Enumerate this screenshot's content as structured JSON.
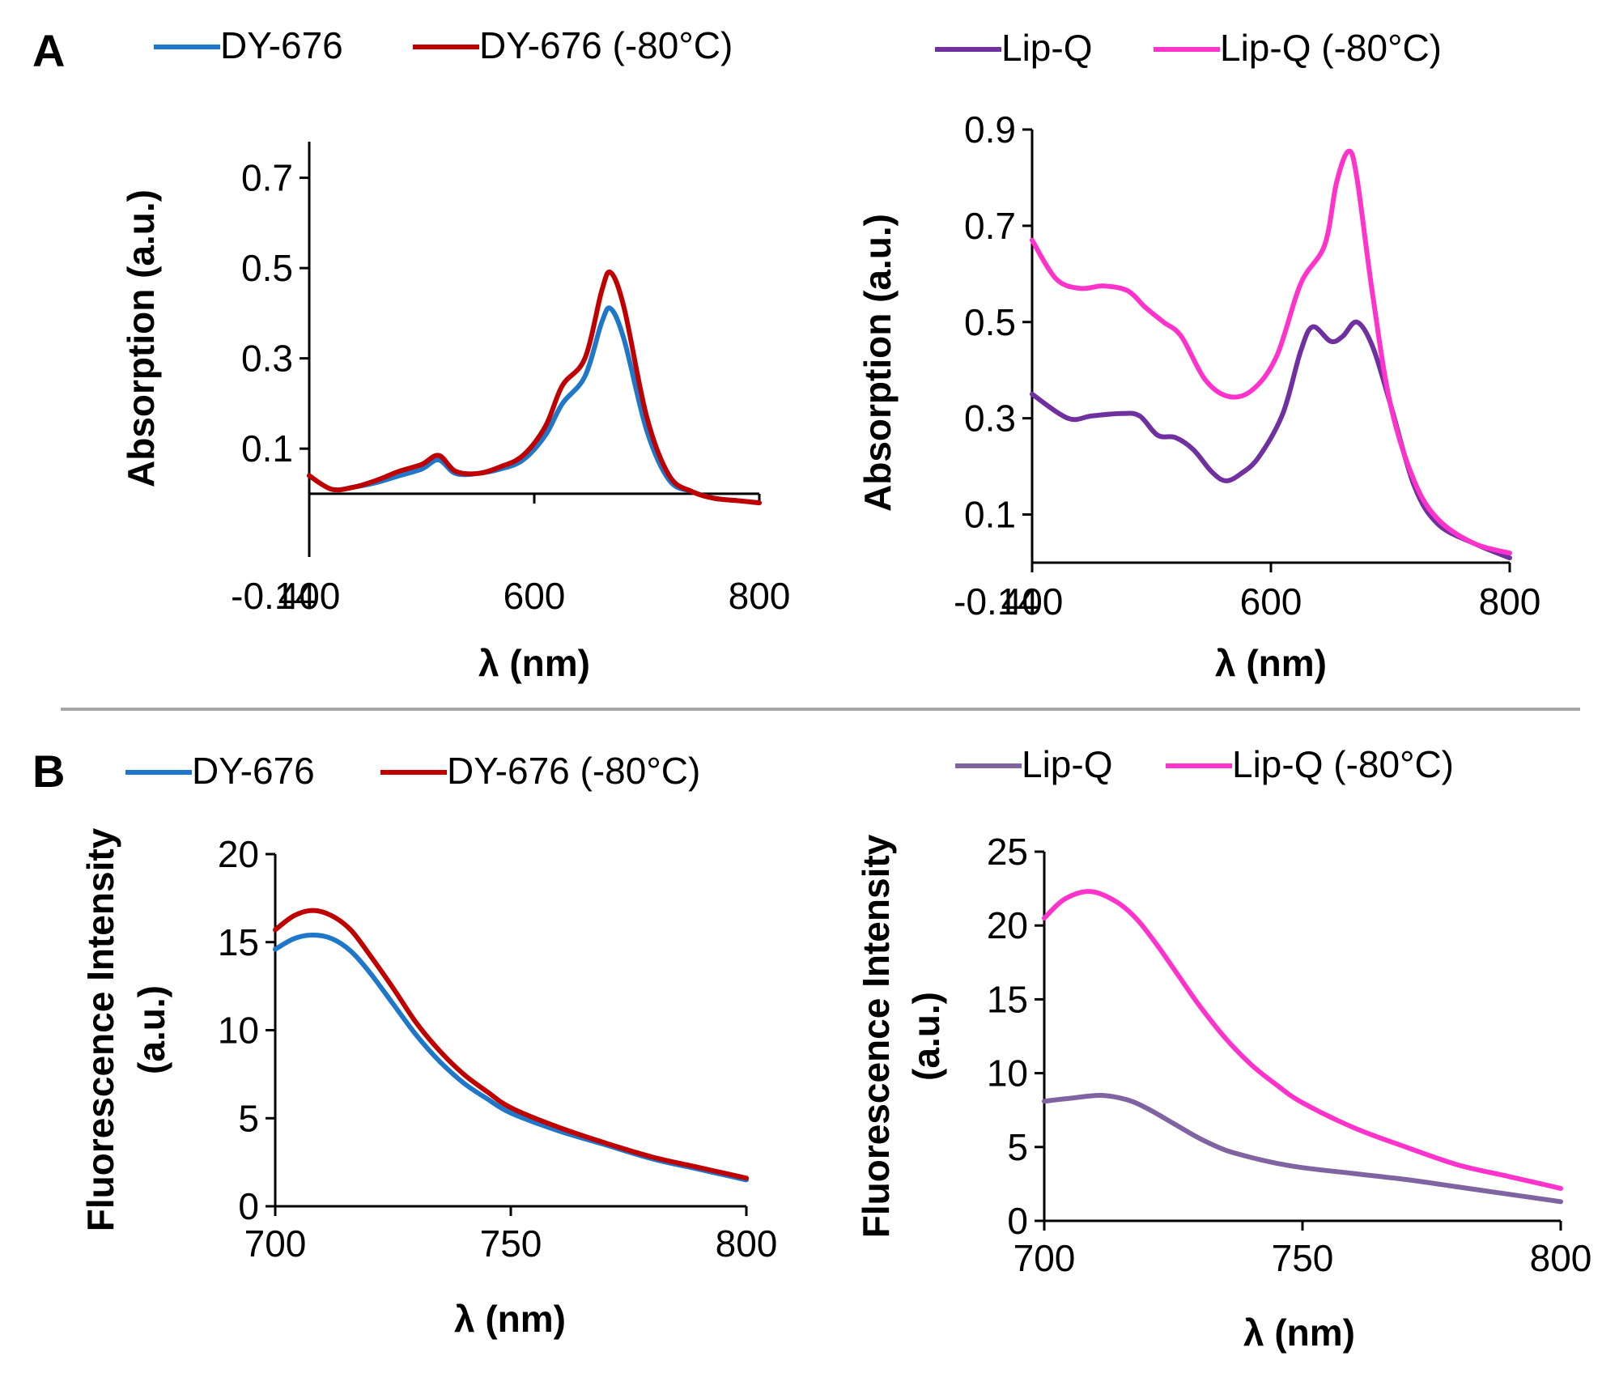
{
  "figure": {
    "panel_labels": [
      "A",
      "B"
    ]
  },
  "chart_data": [
    {
      "type": "line",
      "panel": "A",
      "position": "left",
      "xlabel": "λ (nm)",
      "ylabel": "Absorption (a.u.)",
      "xlim": [
        400,
        800
      ],
      "ylim": [
        -0.14,
        0.78
      ],
      "x_ticks": [
        400,
        600,
        800
      ],
      "x_tick_labels": [
        "400",
        "600",
        "800"
      ],
      "y_ticks": [
        0.1,
        0.3,
        0.5,
        0.7
      ],
      "y_tick_labels": [
        "0.1",
        "0.3",
        "0.5",
        "0.7"
      ],
      "y_min_label": "-0.14",
      "zero_line": true,
      "series": [
        {
          "name": "DY-676",
          "color": "#1f77c9",
          "x": [
            400,
            420,
            440,
            460,
            480,
            500,
            515,
            530,
            550,
            570,
            590,
            610,
            625,
            645,
            660,
            668,
            680,
            700,
            720,
            740,
            760,
            780,
            800
          ],
          "y": [
            0.04,
            0.01,
            0.015,
            0.025,
            0.04,
            0.055,
            0.075,
            0.045,
            0.045,
            0.055,
            0.075,
            0.13,
            0.2,
            0.26,
            0.38,
            0.41,
            0.34,
            0.14,
            0.03,
            0.005,
            -0.01,
            -0.015,
            -0.02
          ]
        },
        {
          "name": "DY-676 (-80°C)",
          "color": "#c00000",
          "x": [
            400,
            420,
            440,
            460,
            480,
            500,
            515,
            530,
            550,
            570,
            590,
            610,
            625,
            645,
            660,
            668,
            680,
            700,
            720,
            740,
            760,
            780,
            800
          ],
          "y": [
            0.04,
            0.01,
            0.015,
            0.03,
            0.05,
            0.065,
            0.085,
            0.05,
            0.045,
            0.06,
            0.085,
            0.15,
            0.24,
            0.3,
            0.45,
            0.49,
            0.41,
            0.17,
            0.04,
            0.005,
            -0.01,
            -0.015,
            -0.02
          ]
        }
      ]
    },
    {
      "type": "line",
      "panel": "A",
      "position": "right",
      "xlabel": "λ (nm)",
      "ylabel": "Absorption (a.u.)",
      "xlim": [
        400,
        800
      ],
      "ylim": [
        0.0,
        0.9
      ],
      "x_ticks": [
        400,
        600,
        800
      ],
      "x_tick_labels": [
        "400",
        "600",
        "800"
      ],
      "y_ticks": [
        0.1,
        0.3,
        0.5,
        0.7,
        0.9
      ],
      "y_tick_labels": [
        "0.1",
        "0.3",
        "0.5",
        "0.7",
        "0.9"
      ],
      "y_min_label": "-0.14",
      "zero_line": false,
      "series": [
        {
          "name": "Lip-Q",
          "color": "#7030a0",
          "x": [
            400,
            430,
            450,
            475,
            490,
            505,
            520,
            535,
            550,
            562,
            575,
            590,
            610,
            625,
            635,
            650,
            660,
            672,
            685,
            700,
            720,
            740,
            770,
            800
          ],
          "y": [
            0.35,
            0.3,
            0.305,
            0.31,
            0.305,
            0.265,
            0.26,
            0.235,
            0.19,
            0.17,
            0.185,
            0.22,
            0.31,
            0.44,
            0.49,
            0.46,
            0.47,
            0.5,
            0.45,
            0.33,
            0.16,
            0.08,
            0.04,
            0.01
          ]
        },
        {
          "name": "Lip-Q (-80°C)",
          "color": "#ff33cc",
          "x": [
            400,
            420,
            440,
            460,
            480,
            495,
            510,
            525,
            545,
            565,
            585,
            605,
            625,
            645,
            655,
            665,
            672,
            685,
            700,
            720,
            740,
            770,
            800
          ],
          "y": [
            0.67,
            0.59,
            0.57,
            0.575,
            0.565,
            0.53,
            0.5,
            0.47,
            0.38,
            0.345,
            0.36,
            0.43,
            0.58,
            0.66,
            0.79,
            0.855,
            0.8,
            0.56,
            0.33,
            0.17,
            0.09,
            0.04,
            0.02
          ]
        }
      ]
    },
    {
      "type": "line",
      "panel": "B",
      "position": "left",
      "xlabel": "λ (nm)",
      "ylabel": "Fluorescence Intensity (a.u.)",
      "ylabel_lines": [
        "Fluorescence Intensity",
        "(a.u.)"
      ],
      "xlim": [
        700,
        800
      ],
      "ylim": [
        0,
        20
      ],
      "x_ticks": [
        700,
        750,
        800
      ],
      "x_tick_labels": [
        "700",
        "750",
        "800"
      ],
      "y_ticks": [
        0,
        5,
        10,
        15,
        20
      ],
      "y_tick_labels": [
        "0",
        "5",
        "10",
        "15",
        "20"
      ],
      "series": [
        {
          "name": "DY-676",
          "color": "#1f77c9",
          "x": [
            700,
            704,
            708,
            712,
            716,
            720,
            725,
            730,
            735,
            740,
            745,
            750,
            760,
            770,
            780,
            790,
            800
          ],
          "y": [
            14.6,
            15.2,
            15.4,
            15.2,
            14.5,
            13.3,
            11.5,
            9.7,
            8.2,
            7.0,
            6.1,
            5.3,
            4.3,
            3.5,
            2.7,
            2.1,
            1.5
          ]
        },
        {
          "name": "DY-676 (-80°C)",
          "color": "#c00000",
          "x": [
            700,
            704,
            708,
            712,
            716,
            720,
            725,
            730,
            735,
            740,
            745,
            750,
            760,
            770,
            780,
            790,
            800
          ],
          "y": [
            15.7,
            16.5,
            16.8,
            16.5,
            15.7,
            14.3,
            12.4,
            10.4,
            8.8,
            7.5,
            6.5,
            5.6,
            4.5,
            3.6,
            2.8,
            2.2,
            1.6
          ]
        }
      ]
    },
    {
      "type": "line",
      "panel": "B",
      "position": "right",
      "xlabel": "λ (nm)",
      "ylabel": "Fluorescence Intensity (a.u.)",
      "ylabel_lines": [
        "Fluorescence Intensity",
        "(a.u.)"
      ],
      "xlim": [
        700,
        800
      ],
      "ylim": [
        0,
        25
      ],
      "x_ticks": [
        700,
        750,
        800
      ],
      "x_tick_labels": [
        "700",
        "750",
        "800"
      ],
      "y_ticks": [
        0,
        5,
        10,
        15,
        20,
        25
      ],
      "y_tick_labels": [
        "0",
        "5",
        "10",
        "15",
        "20",
        "25"
      ],
      "series": [
        {
          "name": "Lip-Q",
          "color": "#8064a2",
          "x": [
            700,
            705,
            711,
            716,
            720,
            725,
            730,
            735,
            740,
            745,
            750,
            760,
            770,
            780,
            790,
            800
          ],
          "y": [
            8.1,
            8.3,
            8.5,
            8.2,
            7.6,
            6.6,
            5.6,
            4.8,
            4.3,
            3.9,
            3.6,
            3.2,
            2.8,
            2.3,
            1.8,
            1.3
          ]
        },
        {
          "name": "Lip-Q (-80°C)",
          "color": "#ff33cc",
          "x": [
            700,
            704,
            709,
            714,
            718,
            722,
            726,
            730,
            735,
            740,
            745,
            750,
            760,
            770,
            780,
            790,
            800
          ],
          "y": [
            20.5,
            21.8,
            22.3,
            21.6,
            20.4,
            18.6,
            16.6,
            14.6,
            12.4,
            10.6,
            9.2,
            8.0,
            6.3,
            5.0,
            3.8,
            3.0,
            2.2
          ]
        }
      ]
    }
  ]
}
